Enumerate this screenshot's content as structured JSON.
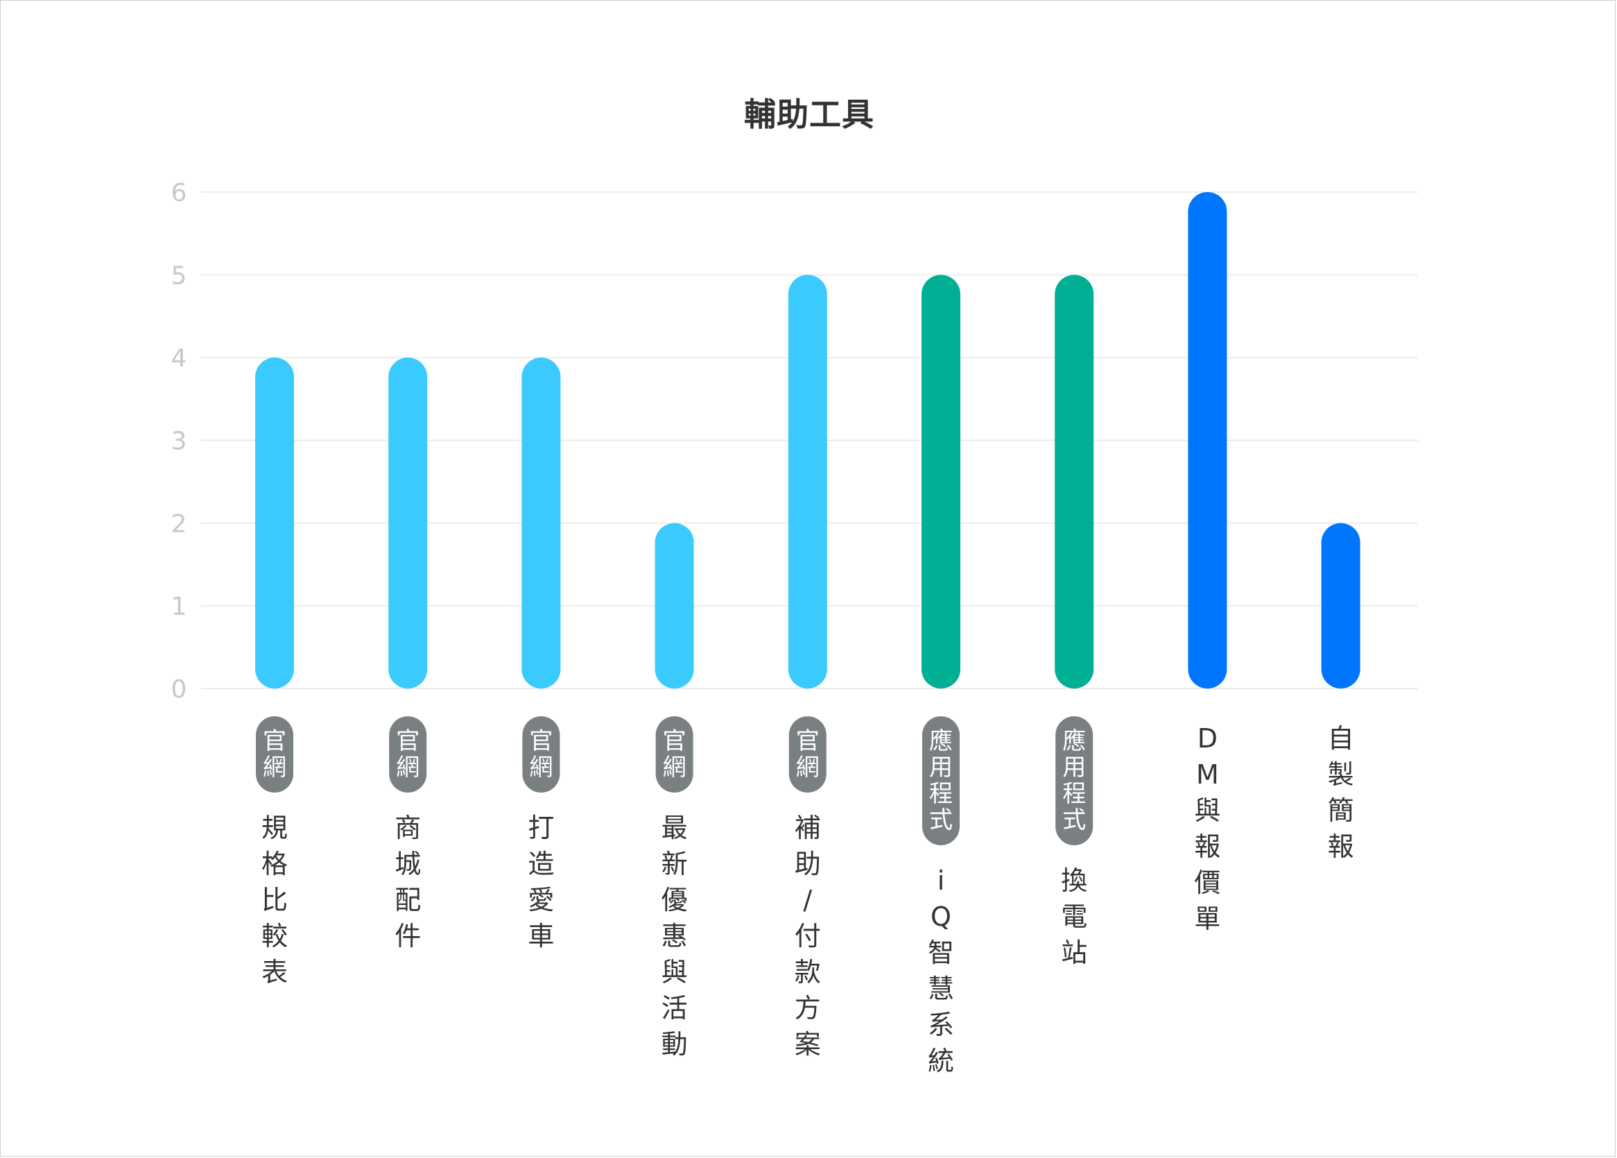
{
  "chart_data": {
    "type": "bar",
    "title": "輔助工具",
    "ylim": [
      0,
      6
    ],
    "yticks": [
      0,
      1,
      2,
      3,
      4,
      5,
      6
    ],
    "grid": true,
    "categories": [
      {
        "tag": "官網",
        "label": "規格比較表",
        "value": 4,
        "color": "#3bcafe"
      },
      {
        "tag": "官網",
        "label": "商城配件",
        "value": 4,
        "color": "#3bcafe"
      },
      {
        "tag": "官網",
        "label": "打造愛車",
        "value": 4,
        "color": "#3bcafe"
      },
      {
        "tag": "官網",
        "label": "最新優惠與活動",
        "value": 2,
        "color": "#3bcafe"
      },
      {
        "tag": "官網",
        "label": "補助/付款方案",
        "value": 5,
        "color": "#3bcafe"
      },
      {
        "tag": "應用程式",
        "label": "iQ智慧系統",
        "value": 5,
        "color": "#00b094"
      },
      {
        "tag": "應用程式",
        "label": "換電站",
        "value": 5,
        "color": "#00b094"
      },
      {
        "tag": "",
        "label": "DM與報價單",
        "value": 6,
        "color": "#0076ff"
      },
      {
        "tag": "",
        "label": "自製簡報",
        "value": 2,
        "color": "#0076ff"
      }
    ]
  },
  "colors": {
    "gridline": "#ececec",
    "tick_text": "#c8c8c8",
    "tag_background": "#7a7f82",
    "label_text": "#333333"
  }
}
